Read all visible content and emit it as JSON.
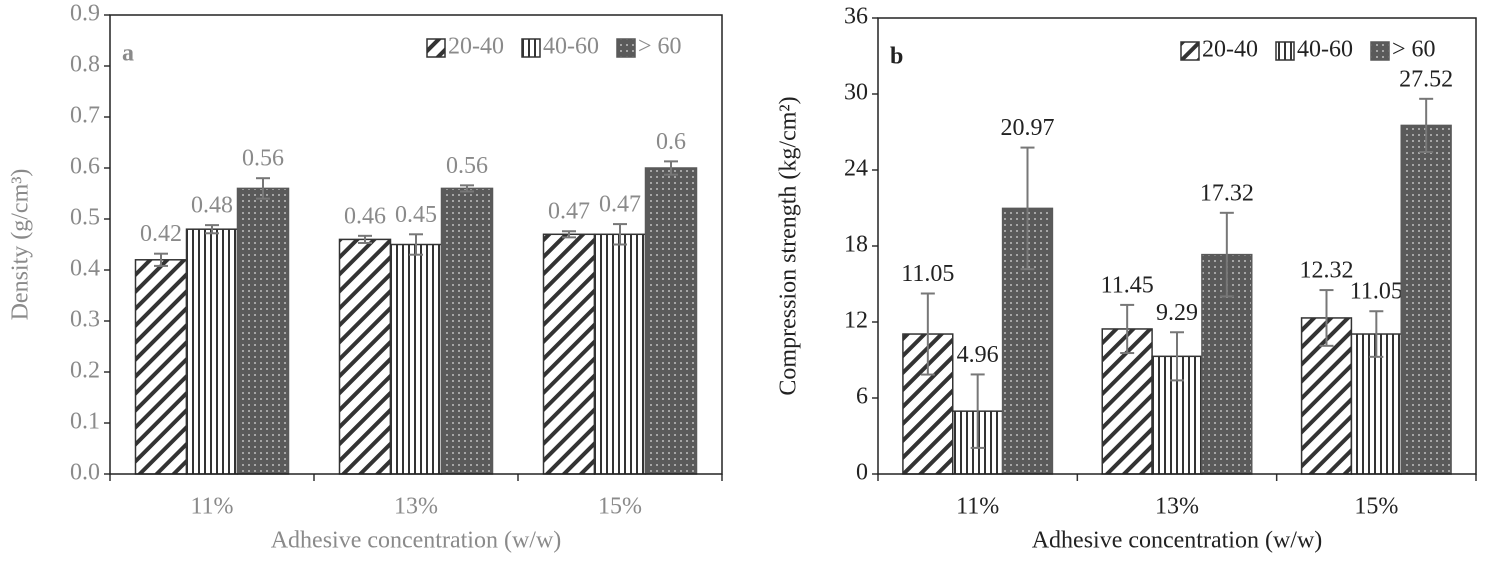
{
  "chart_data": [
    {
      "type": "bar",
      "panel_label": "a",
      "text_color": "#8a8a8a",
      "x_label": "Adhesive concentration (w/w)",
      "y_label": "Density (g/cm³)",
      "categories": [
        "11%",
        "13%",
        "15%"
      ],
      "series": [
        {
          "name": "20-40",
          "color": "#333333",
          "pattern": "diagonal",
          "values": [
            0.42,
            0.46,
            0.47
          ],
          "errors": [
            0.012,
            0.007,
            0.006
          ]
        },
        {
          "name": "40-60",
          "color": "#333333",
          "pattern": "vertical",
          "values": [
            0.48,
            0.45,
            0.47
          ],
          "errors": [
            0.008,
            0.02,
            0.02
          ]
        },
        {
          "name": "> 60",
          "color": "#595959",
          "pattern": "dots",
          "values": [
            0.56,
            0.56,
            0.6
          ],
          "errors": [
            0.02,
            0.006,
            0.013
          ]
        }
      ],
      "ylim": [
        0,
        0.9
      ],
      "yticks": [
        {
          "value": 0,
          "label": "0.0"
        },
        0.1,
        0.2,
        0.3,
        0.4,
        0.5,
        0.6,
        0.7,
        0.8,
        0.9
      ],
      "legend": "top-right"
    },
    {
      "type": "bar",
      "panel_label": "b",
      "text_color": "#222222",
      "x_label": "Adhesive concentration (w/w)",
      "y_label": "Compression strength (kg/cm²)",
      "categories": [
        "11%",
        "13%",
        "15%"
      ],
      "series": [
        {
          "name": "20-40",
          "color": "#333333",
          "pattern": "diagonal",
          "values": [
            11.05,
            11.45,
            12.32
          ],
          "errors": [
            3.2,
            1.9,
            2.2
          ]
        },
        {
          "name": "40-60",
          "color": "#333333",
          "pattern": "vertical",
          "values": [
            4.96,
            9.29,
            11.05
          ],
          "errors": [
            2.9,
            1.9,
            1.8
          ]
        },
        {
          "name": "> 60",
          "color": "#595959",
          "pattern": "dots",
          "values": [
            20.97,
            17.32,
            27.52
          ],
          "errors": [
            4.8,
            3.3,
            2.1
          ]
        }
      ],
      "ylim": [
        0,
        36
      ],
      "yticks": [
        0,
        6,
        12,
        18,
        24,
        30,
        36
      ],
      "legend": "top-right"
    }
  ]
}
